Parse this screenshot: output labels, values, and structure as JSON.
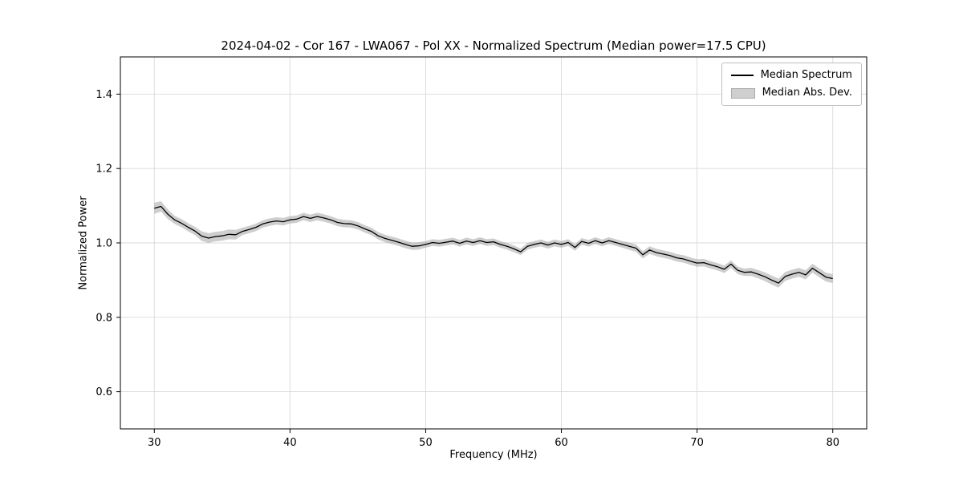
{
  "chart_data": {
    "type": "line",
    "title": "2024-04-02 - Cor 167 - LWA067 - Pol XX - Normalized Spectrum (Median power=17.5 CPU)",
    "xlabel": "Frequency (MHz)",
    "ylabel": "Normalized Power",
    "xlim": [
      27.5,
      82.5
    ],
    "ylim": [
      0.5,
      1.5
    ],
    "xticks": [
      30,
      40,
      50,
      60,
      70,
      80
    ],
    "yticks": [
      0.6,
      0.8,
      1.0,
      1.2,
      1.4
    ],
    "grid": true,
    "grid_color": "#d9d9d9",
    "line_color": "#000000",
    "band_color": "#9e9e9e",
    "band_opacity": 0.5,
    "legend_position": "upper right",
    "legend": [
      "Median Spectrum",
      "Median Abs. Dev."
    ],
    "x": [
      30,
      30.5,
      31,
      31.5,
      32,
      32.5,
      33,
      33.5,
      34,
      34.5,
      35,
      35.5,
      36,
      36.5,
      37,
      37.5,
      38,
      38.5,
      39,
      39.5,
      40,
      40.5,
      41,
      41.5,
      42,
      42.5,
      43,
      43.5,
      44,
      44.5,
      45,
      45.5,
      46,
      46.5,
      47,
      47.5,
      48,
      48.5,
      49,
      49.5,
      50,
      50.5,
      51,
      51.5,
      52,
      52.5,
      53,
      53.5,
      54,
      54.5,
      55,
      55.5,
      56,
      56.5,
      57,
      57.5,
      58,
      58.5,
      59,
      59.5,
      60,
      60.5,
      61,
      61.5,
      62,
      62.5,
      63,
      63.5,
      64,
      64.5,
      65,
      65.5,
      66,
      66.5,
      67,
      67.5,
      68,
      68.5,
      69,
      69.5,
      70,
      70.5,
      71,
      71.5,
      72,
      72.5,
      73,
      73.5,
      74,
      74.5,
      75,
      75.5,
      76,
      76.5,
      77,
      77.5,
      78,
      78.5,
      79,
      79.5,
      80
    ],
    "median": [
      1.093,
      1.098,
      1.077,
      1.062,
      1.053,
      1.042,
      1.032,
      1.018,
      1.013,
      1.017,
      1.019,
      1.023,
      1.022,
      1.031,
      1.036,
      1.042,
      1.051,
      1.056,
      1.059,
      1.057,
      1.062,
      1.064,
      1.071,
      1.066,
      1.071,
      1.067,
      1.062,
      1.055,
      1.052,
      1.051,
      1.046,
      1.038,
      1.031,
      1.019,
      1.012,
      1.007,
      1.002,
      0.996,
      0.991,
      0.992,
      0.996,
      1.001,
      0.999,
      1.002,
      1.005,
      0.999,
      1.005,
      1.001,
      1.006,
      1.001,
      1.003,
      0.996,
      0.991,
      0.984,
      0.976,
      0.991,
      0.996,
      1.0,
      0.994,
      1.0,
      0.996,
      1.001,
      0.988,
      1.004,
      0.999,
      1.006,
      1.0,
      1.006,
      1.001,
      0.996,
      0.991,
      0.986,
      0.968,
      0.981,
      0.974,
      0.97,
      0.966,
      0.96,
      0.957,
      0.951,
      0.946,
      0.947,
      0.941,
      0.936,
      0.929,
      0.943,
      0.926,
      0.921,
      0.922,
      0.916,
      0.909,
      0.9,
      0.892,
      0.91,
      0.916,
      0.921,
      0.914,
      0.932,
      0.92,
      0.908,
      0.904
    ],
    "mad": [
      0.015,
      0.014,
      0.013,
      0.011,
      0.011,
      0.011,
      0.011,
      0.013,
      0.013,
      0.013,
      0.013,
      0.013,
      0.013,
      0.01,
      0.01,
      0.01,
      0.01,
      0.01,
      0.01,
      0.01,
      0.01,
      0.01,
      0.01,
      0.01,
      0.01,
      0.01,
      0.01,
      0.01,
      0.01,
      0.01,
      0.01,
      0.01,
      0.01,
      0.01,
      0.01,
      0.01,
      0.01,
      0.01,
      0.01,
      0.01,
      0.009,
      0.009,
      0.009,
      0.009,
      0.009,
      0.009,
      0.009,
      0.009,
      0.009,
      0.009,
      0.009,
      0.009,
      0.009,
      0.009,
      0.009,
      0.009,
      0.009,
      0.009,
      0.009,
      0.009,
      0.009,
      0.009,
      0.009,
      0.009,
      0.009,
      0.009,
      0.009,
      0.009,
      0.009,
      0.009,
      0.01,
      0.01,
      0.01,
      0.01,
      0.01,
      0.01,
      0.01,
      0.01,
      0.01,
      0.01,
      0.01,
      0.01,
      0.01,
      0.01,
      0.01,
      0.01,
      0.01,
      0.01,
      0.011,
      0.011,
      0.012,
      0.012,
      0.012,
      0.012,
      0.012,
      0.012,
      0.012,
      0.012,
      0.012,
      0.012,
      0.012
    ]
  }
}
